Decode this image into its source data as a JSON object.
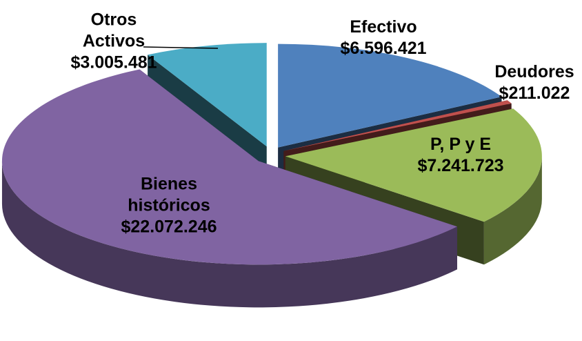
{
  "chart_data": {
    "type": "pie",
    "categories": [
      "Efectivo",
      "Deudores",
      "P, P y E",
      "Bienes históricos",
      "Otros Activos"
    ],
    "values": [
      6596421,
      211022,
      7241723,
      22072246,
      3005481
    ],
    "value_labels": [
      "$6.596.421",
      "$211.022",
      "$7.241.723",
      "$22.072.246",
      "$3.005.481"
    ],
    "colors": [
      "#4f81bd",
      "#c0504d",
      "#9bbb59",
      "#8064a2",
      "#4bacc6"
    ]
  }
}
